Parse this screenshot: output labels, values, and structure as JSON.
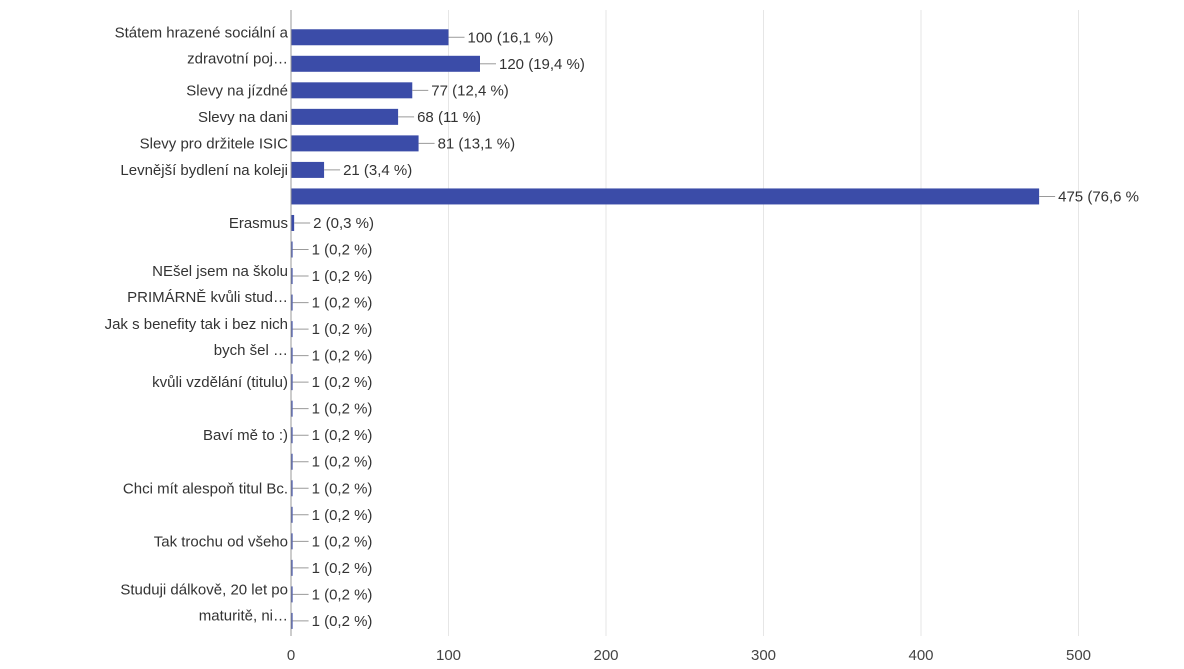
{
  "colors": {
    "bar": "#3b4ca8",
    "grid": "#e6e6e6",
    "text": "#333333"
  },
  "chart_data": {
    "type": "bar",
    "orientation": "horizontal",
    "title": "",
    "xlabel": "",
    "ylabel": "",
    "xlim": [
      0,
      500
    ],
    "xticks": [
      0,
      100,
      200,
      300,
      400,
      500
    ],
    "grid": true,
    "legend": "none",
    "rows": [
      {
        "label": [
          "Státem hrazené sociální a",
          "zdravotní poj…"
        ],
        "value": 100,
        "value_label": "100 (16,1 %)"
      },
      {
        "label": [],
        "value": 120,
        "value_label": "120 (19,4 %)"
      },
      {
        "label": [
          "Slevy na jízdné"
        ],
        "value": 77,
        "value_label": "77 (12,4 %)"
      },
      {
        "label": [
          "Slevy na dani"
        ],
        "value": 68,
        "value_label": "68 (11 %)"
      },
      {
        "label": [
          "Slevy pro držitele ISIC"
        ],
        "value": 81,
        "value_label": "81 (13,1 %)"
      },
      {
        "label": [
          "Levnější bydlení na koleji"
        ],
        "value": 21,
        "value_label": "21 (3,4 %)"
      },
      {
        "label": [],
        "value": 475,
        "value_label": "475 (76,6 %"
      },
      {
        "label": [
          "Erasmus"
        ],
        "value": 2,
        "value_label": "2 (0,3 %)"
      },
      {
        "label": [],
        "value": 1,
        "value_label": "1 (0,2 %)"
      },
      {
        "label": [
          "NEšel jsem na školu",
          "PRIMÁRNĚ kvůli stud…"
        ],
        "value": 1,
        "value_label": "1 (0,2 %)"
      },
      {
        "label": [],
        "value": 1,
        "value_label": "1 (0,2 %)"
      },
      {
        "label": [
          "Jak s benefity tak i bez nich",
          "bych šel …"
        ],
        "value": 1,
        "value_label": "1 (0,2 %)"
      },
      {
        "label": [],
        "value": 1,
        "value_label": "1 (0,2 %)"
      },
      {
        "label": [
          "kvůli vzdělání (titulu)"
        ],
        "value": 1,
        "value_label": "1 (0,2 %)"
      },
      {
        "label": [],
        "value": 1,
        "value_label": "1 (0,2 %)"
      },
      {
        "label": [
          "Baví mě to :)"
        ],
        "value": 1,
        "value_label": "1 (0,2 %)"
      },
      {
        "label": [],
        "value": 1,
        "value_label": "1 (0,2 %)"
      },
      {
        "label": [
          "Chci mít alespoň titul Bc."
        ],
        "value": 1,
        "value_label": "1 (0,2 %)"
      },
      {
        "label": [],
        "value": 1,
        "value_label": "1 (0,2 %)"
      },
      {
        "label": [
          "Tak trochu od všeho"
        ],
        "value": 1,
        "value_label": "1 (0,2 %)"
      },
      {
        "label": [],
        "value": 1,
        "value_label": "1 (0,2 %)"
      },
      {
        "label": [
          "Studuji dálkově, 20 let po",
          "maturitě, ni…"
        ],
        "value": 1,
        "value_label": "1 (0,2 %)"
      },
      {
        "label": [],
        "value": 1,
        "value_label": "1 (0,2 %)"
      }
    ]
  }
}
